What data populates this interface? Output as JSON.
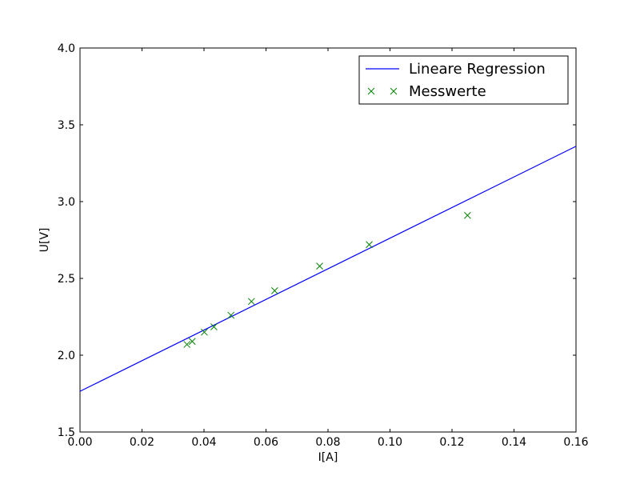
{
  "chart_data": {
    "type": "scatter",
    "xlabel": "I[A]",
    "ylabel": "U[V]",
    "xlim": [
      0.0,
      0.16
    ],
    "ylim": [
      1.5,
      4.0
    ],
    "x_ticks": [
      "0.00",
      "0.02",
      "0.04",
      "0.06",
      "0.08",
      "0.10",
      "0.12",
      "0.14",
      "0.16"
    ],
    "y_ticks": [
      "1.5",
      "2.0",
      "2.5",
      "3.0",
      "3.5",
      "4.0"
    ],
    "grid": false,
    "legend_position": "top-right",
    "series": [
      {
        "name": "Lineare Regression",
        "kind": "line",
        "color": "#0000ff",
        "x": [
          0.0,
          0.16
        ],
        "y": [
          1.765,
          3.36
        ]
      },
      {
        "name": "Messwerte",
        "kind": "markers",
        "marker": "x",
        "color": "#008000",
        "x": [
          0.0345,
          0.0362,
          0.0401,
          0.0432,
          0.0487,
          0.0553,
          0.0628,
          0.0773,
          0.0933,
          0.125
        ],
        "y": [
          2.07,
          2.09,
          2.15,
          2.185,
          2.26,
          2.35,
          2.42,
          2.58,
          2.72,
          2.91
        ]
      }
    ]
  }
}
